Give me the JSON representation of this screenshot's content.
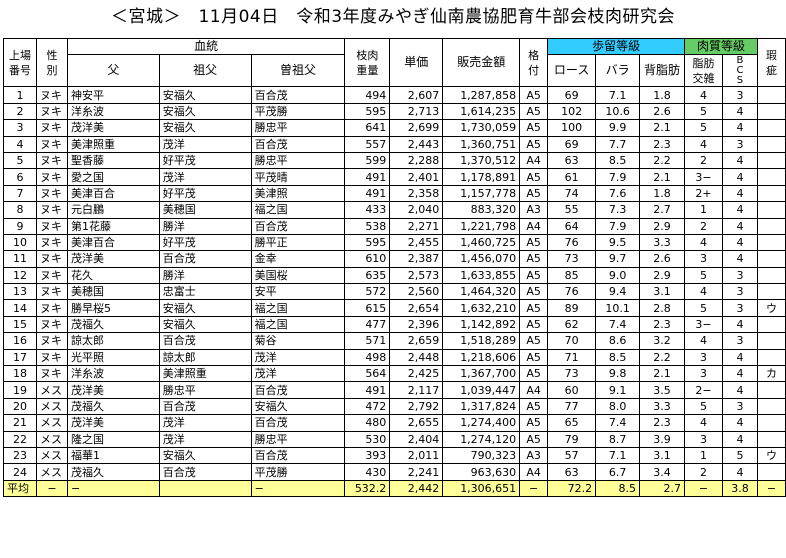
{
  "title": "＜宮城＞　11月04日　令和3年度みやぎ仙南農協肥育牛部会枝肉研究会",
  "headers": {
    "no": "上場\n番号",
    "sex": "性\n別",
    "lineage": "血統",
    "father": "父",
    "grandfather": "祖父",
    "greatgrandfather": "曽祖父",
    "weight": "枝肉\n重量",
    "unit_price": "単価",
    "sales": "販売金額",
    "grade": "格\n付",
    "yield_grade": "歩留等級",
    "loin": "ロース",
    "rib": "バラ",
    "fat": "背脂肪",
    "meat_grade": "肉質等級",
    "marbling": "脂肪\n交雑",
    "bcs": "B\nC\nS",
    "defect": "瑕\n疵"
  },
  "rows": [
    [
      "1",
      "ヌキ",
      "神安平",
      "安福久",
      "百合茂",
      "494",
      "2,607",
      "1,287,858",
      "A5",
      "69",
      "7.1",
      "1.8",
      "4",
      "3",
      ""
    ],
    [
      "2",
      "ヌキ",
      "洋糸波",
      "安福久",
      "平茂勝",
      "595",
      "2,713",
      "1,614,235",
      "A5",
      "102",
      "10.6",
      "2.6",
      "5",
      "4",
      ""
    ],
    [
      "3",
      "ヌキ",
      "茂洋美",
      "安福久",
      "勝忠平",
      "641",
      "2,699",
      "1,730,059",
      "A5",
      "100",
      "9.9",
      "2.1",
      "5",
      "4",
      ""
    ],
    [
      "4",
      "ヌキ",
      "美津照重",
      "茂洋",
      "百合茂",
      "557",
      "2,443",
      "1,360,751",
      "A5",
      "69",
      "7.7",
      "2.3",
      "4",
      "3",
      ""
    ],
    [
      "5",
      "ヌキ",
      "聖香藤",
      "好平茂",
      "勝忠平",
      "599",
      "2,288",
      "1,370,512",
      "A4",
      "63",
      "8.5",
      "2.2",
      "2",
      "4",
      ""
    ],
    [
      "6",
      "ヌキ",
      "愛之国",
      "茂洋",
      "平茂晴",
      "491",
      "2,401",
      "1,178,891",
      "A5",
      "61",
      "7.9",
      "2.1",
      "3−",
      "4",
      ""
    ],
    [
      "7",
      "ヌキ",
      "美津百合",
      "好平茂",
      "美津照",
      "491",
      "2,358",
      "1,157,778",
      "A5",
      "74",
      "7.6",
      "1.8",
      "2+",
      "4",
      ""
    ],
    [
      "8",
      "ヌキ",
      "元白鵬",
      "美穂国",
      "福之国",
      "433",
      "2,040",
      "883,320",
      "A3",
      "55",
      "7.3",
      "2.7",
      "1",
      "4",
      ""
    ],
    [
      "9",
      "ヌキ",
      "第1花藤",
      "勝洋",
      "百合茂",
      "538",
      "2,271",
      "1,221,798",
      "A4",
      "64",
      "7.9",
      "2.9",
      "2",
      "4",
      ""
    ],
    [
      "10",
      "ヌキ",
      "美津百合",
      "好平茂",
      "勝平正",
      "595",
      "2,455",
      "1,460,725",
      "A5",
      "76",
      "9.5",
      "3.3",
      "4",
      "4",
      ""
    ],
    [
      "11",
      "ヌキ",
      "茂洋美",
      "百合茂",
      "金幸",
      "610",
      "2,387",
      "1,456,070",
      "A5",
      "73",
      "9.7",
      "2.6",
      "3",
      "4",
      ""
    ],
    [
      "12",
      "ヌキ",
      "花久",
      "勝洋",
      "美国桜",
      "635",
      "2,573",
      "1,633,855",
      "A5",
      "85",
      "9.0",
      "2.9",
      "5",
      "3",
      ""
    ],
    [
      "13",
      "ヌキ",
      "美穂国",
      "忠富士",
      "安平",
      "572",
      "2,560",
      "1,464,320",
      "A5",
      "76",
      "9.4",
      "3.1",
      "4",
      "3",
      ""
    ],
    [
      "14",
      "ヌキ",
      "勝早桜5",
      "安福久",
      "福之国",
      "615",
      "2,654",
      "1,632,210",
      "A5",
      "89",
      "10.1",
      "2.8",
      "5",
      "3",
      "ウ"
    ],
    [
      "15",
      "ヌキ",
      "茂福久",
      "安福久",
      "福之国",
      "477",
      "2,396",
      "1,142,892",
      "A5",
      "62",
      "7.4",
      "2.3",
      "3−",
      "4",
      ""
    ],
    [
      "16",
      "ヌキ",
      "諒太郎",
      "百合茂",
      "菊谷",
      "571",
      "2,659",
      "1,518,289",
      "A5",
      "70",
      "8.6",
      "3.2",
      "4",
      "3",
      ""
    ],
    [
      "17",
      "ヌキ",
      "光平照",
      "諒太郎",
      "茂洋",
      "498",
      "2,448",
      "1,218,606",
      "A5",
      "71",
      "8.5",
      "2.2",
      "3",
      "4",
      ""
    ],
    [
      "18",
      "ヌキ",
      "洋糸波",
      "美津照重",
      "茂洋",
      "564",
      "2,425",
      "1,367,700",
      "A5",
      "73",
      "9.8",
      "2.1",
      "3",
      "4",
      "カ"
    ],
    [
      "19",
      "メス",
      "茂洋美",
      "勝忠平",
      "百合茂",
      "491",
      "2,117",
      "1,039,447",
      "A4",
      "60",
      "9.1",
      "3.5",
      "2−",
      "4",
      ""
    ],
    [
      "20",
      "メス",
      "茂福久",
      "百合茂",
      "安福久",
      "472",
      "2,792",
      "1,317,824",
      "A5",
      "77",
      "8.0",
      "3.3",
      "5",
      "3",
      ""
    ],
    [
      "21",
      "メス",
      "茂洋美",
      "茂洋",
      "百合茂",
      "480",
      "2,655",
      "1,274,400",
      "A5",
      "65",
      "7.4",
      "2.3",
      "4",
      "4",
      ""
    ],
    [
      "22",
      "メス",
      "隆之国",
      "茂洋",
      "勝忠平",
      "530",
      "2,404",
      "1,274,120",
      "A5",
      "79",
      "8.7",
      "3.9",
      "3",
      "4",
      ""
    ],
    [
      "23",
      "メス",
      "福華1",
      "安福久",
      "百合茂",
      "393",
      "2,011",
      "790,323",
      "A3",
      "57",
      "7.1",
      "3.1",
      "1",
      "5",
      "ウ"
    ],
    [
      "24",
      "メス",
      "茂福久",
      "百合茂",
      "平茂勝",
      "430",
      "2,241",
      "963,630",
      "A4",
      "63",
      "6.7",
      "3.4",
      "2",
      "4",
      ""
    ]
  ],
  "average": {
    "label": "平均",
    "sex": "−",
    "father": "−",
    "grandfather": "",
    "greatgrandfather": "−",
    "weight": "532.2",
    "unit_price": "2,442",
    "sales": "1,306,651",
    "grade": "−",
    "loin": "72.2",
    "rib": "8.5",
    "fat": "2.7",
    "marbling": "−",
    "bcs": "3.8",
    "defect": "−"
  },
  "colors": {
    "yield_header": "#33ccff",
    "meat_header": "#66cc66",
    "average_row": "#ffff99"
  }
}
